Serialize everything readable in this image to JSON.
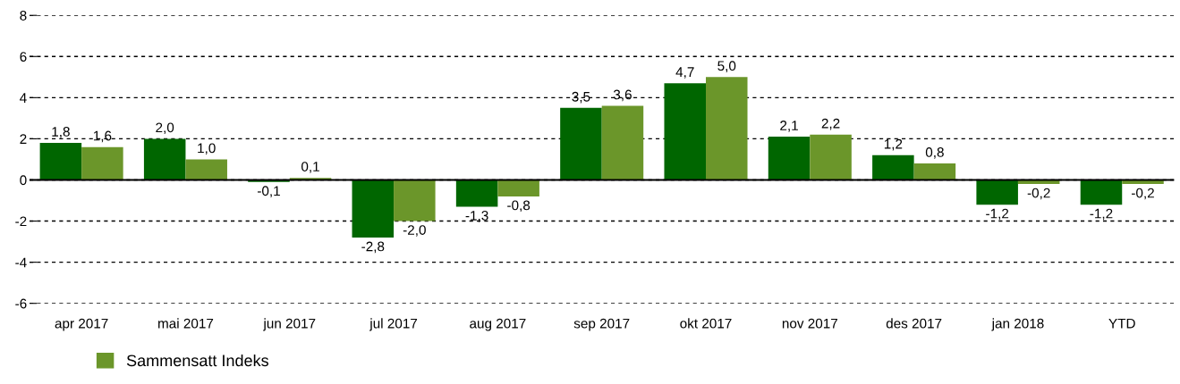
{
  "chart_data": {
    "type": "bar",
    "categories": [
      "apr 2017",
      "mai 2017",
      "jun 2017",
      "jul 2017",
      "aug 2017",
      "sep 2017",
      "okt 2017",
      "nov 2017",
      "des 2017",
      "jan 2018",
      "YTD"
    ],
    "series": [
      {
        "color": "#006600",
        "values": [
          1.8,
          2.0,
          -0.1,
          -2.8,
          -1.3,
          3.5,
          4.7,
          2.1,
          1.2,
          -1.2,
          -1.2
        ],
        "value_labels": [
          "1,8",
          "2,0",
          "-0,1",
          "-2,8",
          "-1,3",
          "3,5",
          "4,7",
          "2,1",
          "1,2",
          "-1,2",
          "-1,2"
        ]
      },
      {
        "name": "Sammensatt Indeks",
        "color": "#6b962a",
        "values": [
          1.6,
          1.0,
          0.1,
          -2.0,
          -0.8,
          3.6,
          5.0,
          2.2,
          0.8,
          -0.2,
          -0.2
        ],
        "value_labels": [
          "1,6",
          "1,0",
          "0,1",
          "-2,0",
          "-0,8",
          "3,6",
          "5,0",
          "2,2",
          "0,8",
          "-0,2",
          "-0,2"
        ]
      }
    ],
    "ylim": [
      -6,
      8
    ],
    "yticks": [
      -6,
      -4,
      -2,
      0,
      2,
      4,
      6,
      8
    ],
    "ref_lines": [
      {
        "axis": "y",
        "value": 0,
        "color": "#000000",
        "line_style": "solid"
      }
    ],
    "grid": "y",
    "legend": "bottom left"
  }
}
